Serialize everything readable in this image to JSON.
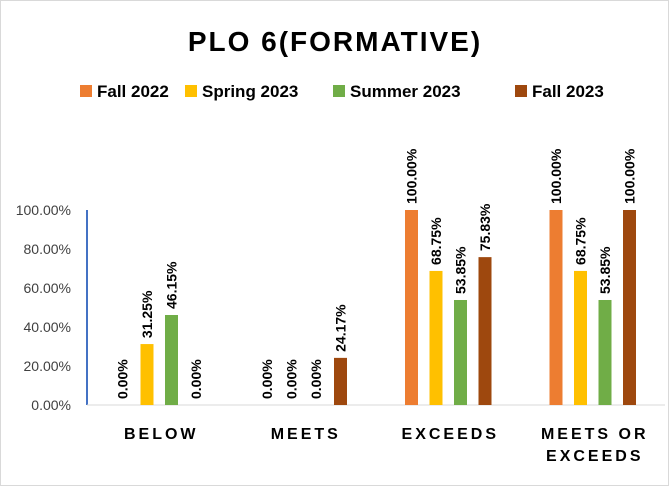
{
  "chart_data": {
    "type": "bar",
    "title": "PLO 6(FORMATIVE)",
    "categories": [
      [
        "BELOW"
      ],
      [
        "MEETS"
      ],
      [
        "EXCEEDS"
      ],
      [
        "MEETS OR",
        "EXCEEDS"
      ]
    ],
    "series": [
      {
        "name": "Fall 2022",
        "color": "#ED7D31",
        "values": [
          0.0,
          0.0,
          100.0,
          100.0
        ],
        "labels": [
          "0.00%",
          "0.00%",
          "100.00%",
          "100.00%"
        ]
      },
      {
        "name": "Spring 2023",
        "color": "#FFC000",
        "values": [
          31.25,
          0.0,
          68.75,
          68.75
        ],
        "labels": [
          "31.25%",
          "0.00%",
          "68.75%",
          "68.75%"
        ]
      },
      {
        "name": "Summer 2023",
        "color": "#70AD47",
        "values": [
          46.15,
          0.0,
          53.85,
          53.85
        ],
        "labels": [
          "46.15%",
          "0.00%",
          "53.85%",
          "53.85%"
        ]
      },
      {
        "name": "Fall 2023",
        "color": "#9E480E",
        "values": [
          0.0,
          24.17,
          75.83,
          100.0
        ],
        "labels": [
          "0.00%",
          "24.17%",
          "75.83%",
          "100.00%"
        ]
      }
    ],
    "yticks": [
      "0.00%",
      "20.00%",
      "40.00%",
      "60.00%",
      "80.00%",
      "100.00%"
    ],
    "ylim": [
      0,
      100
    ],
    "legend": "top",
    "grid": false
  }
}
